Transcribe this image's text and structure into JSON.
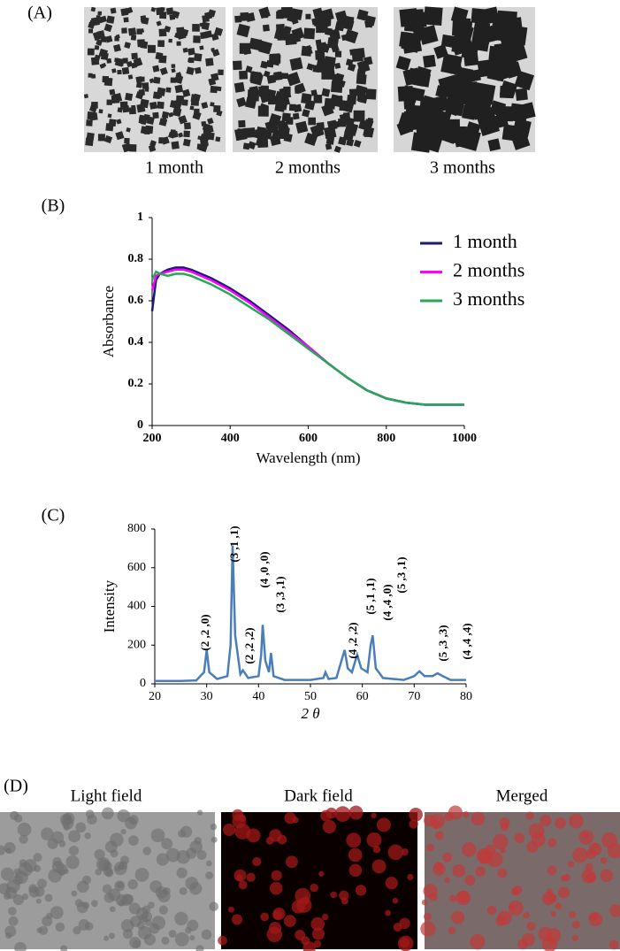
{
  "panel_a": {
    "label": "(A)",
    "captions": [
      "1 month",
      "2 months",
      "3 months"
    ]
  },
  "panel_d": {
    "label": "(D)",
    "captions": [
      "Light field",
      "Dark field",
      "Merged"
    ]
  },
  "chart_data": [
    {
      "type": "line",
      "label": "(B)",
      "xlabel": "Wavelength (nm)",
      "ylabel": "Absorbance",
      "x": [
        200,
        210,
        220,
        240,
        260,
        280,
        300,
        350,
        400,
        450,
        500,
        550,
        600,
        650,
        700,
        750,
        800,
        850,
        900,
        950,
        1000
      ],
      "series": [
        {
          "name": "1 month",
          "color": "#1a1a7a",
          "values": [
            0.55,
            0.7,
            0.73,
            0.75,
            0.76,
            0.76,
            0.75,
            0.71,
            0.66,
            0.6,
            0.53,
            0.46,
            0.38,
            0.3,
            0.23,
            0.17,
            0.13,
            0.11,
            0.1,
            0.1,
            0.1
          ]
        },
        {
          "name": "2 months",
          "color": "#ff00ff",
          "values": [
            0.65,
            0.72,
            0.73,
            0.74,
            0.75,
            0.75,
            0.74,
            0.7,
            0.65,
            0.59,
            0.52,
            0.45,
            0.38,
            0.3,
            0.23,
            0.17,
            0.13,
            0.11,
            0.1,
            0.1,
            0.1
          ]
        },
        {
          "name": "3 months",
          "color": "#22aa55",
          "values": [
            0.7,
            0.74,
            0.73,
            0.72,
            0.73,
            0.73,
            0.72,
            0.68,
            0.63,
            0.57,
            0.51,
            0.44,
            0.37,
            0.3,
            0.23,
            0.17,
            0.13,
            0.11,
            0.1,
            0.1,
            0.1
          ]
        }
      ],
      "xlim": [
        200,
        1000
      ],
      "xticks": [
        200,
        400,
        600,
        800,
        1000
      ],
      "ylim": [
        0,
        1
      ],
      "yticks": [
        0,
        0.2,
        0.4,
        0.6,
        0.8,
        1
      ]
    },
    {
      "type": "line",
      "label": "(C)",
      "xlabel": "2 θ",
      "ylabel": "Intensity",
      "x": [
        20,
        25,
        28,
        29.5,
        30,
        30.5,
        32,
        34,
        34.6,
        35,
        35.5,
        36.5,
        37,
        38,
        40,
        40.5,
        40.8,
        41.3,
        42,
        42.4,
        42.9,
        45,
        50,
        52.5,
        52.9,
        53.5,
        55,
        56.2,
        56.6,
        57.2,
        58,
        59,
        59.8,
        61,
        61.6,
        62,
        62.6,
        64,
        68,
        70,
        71,
        72,
        73.5,
        74.5,
        75.5,
        77,
        80
      ],
      "series": [
        {
          "name": null,
          "color": "#4a7ebb",
          "values": [
            15,
            15,
            18,
            60,
            175,
            60,
            25,
            40,
            200,
            715,
            250,
            50,
            70,
            30,
            40,
            150,
            305,
            120,
            60,
            160,
            40,
            20,
            20,
            30,
            60,
            25,
            30,
            140,
            175,
            80,
            60,
            150,
            80,
            60,
            200,
            250,
            80,
            30,
            20,
            40,
            65,
            40,
            40,
            55,
            40,
            20,
            20
          ]
        }
      ],
      "annotations": [
        "(2 ,2 ,0)",
        "(3 ,1 ,1)",
        "(2 ,2 ,2)",
        "(4 ,0 ,0)",
        "(3 ,3 ,1)",
        "(4 ,2 ,2)",
        "(5 ,1 ,1)",
        "(4 ,4 ,0)",
        "(5 ,3 ,1)",
        "(5 ,3 ,3)",
        "(4 ,4 ,4)"
      ],
      "xlim": [
        20,
        80
      ],
      "xticks": [
        20,
        30,
        40,
        50,
        60,
        70,
        80
      ],
      "ylim": [
        0,
        800
      ],
      "yticks": [
        0,
        200,
        400,
        600,
        800
      ]
    }
  ]
}
